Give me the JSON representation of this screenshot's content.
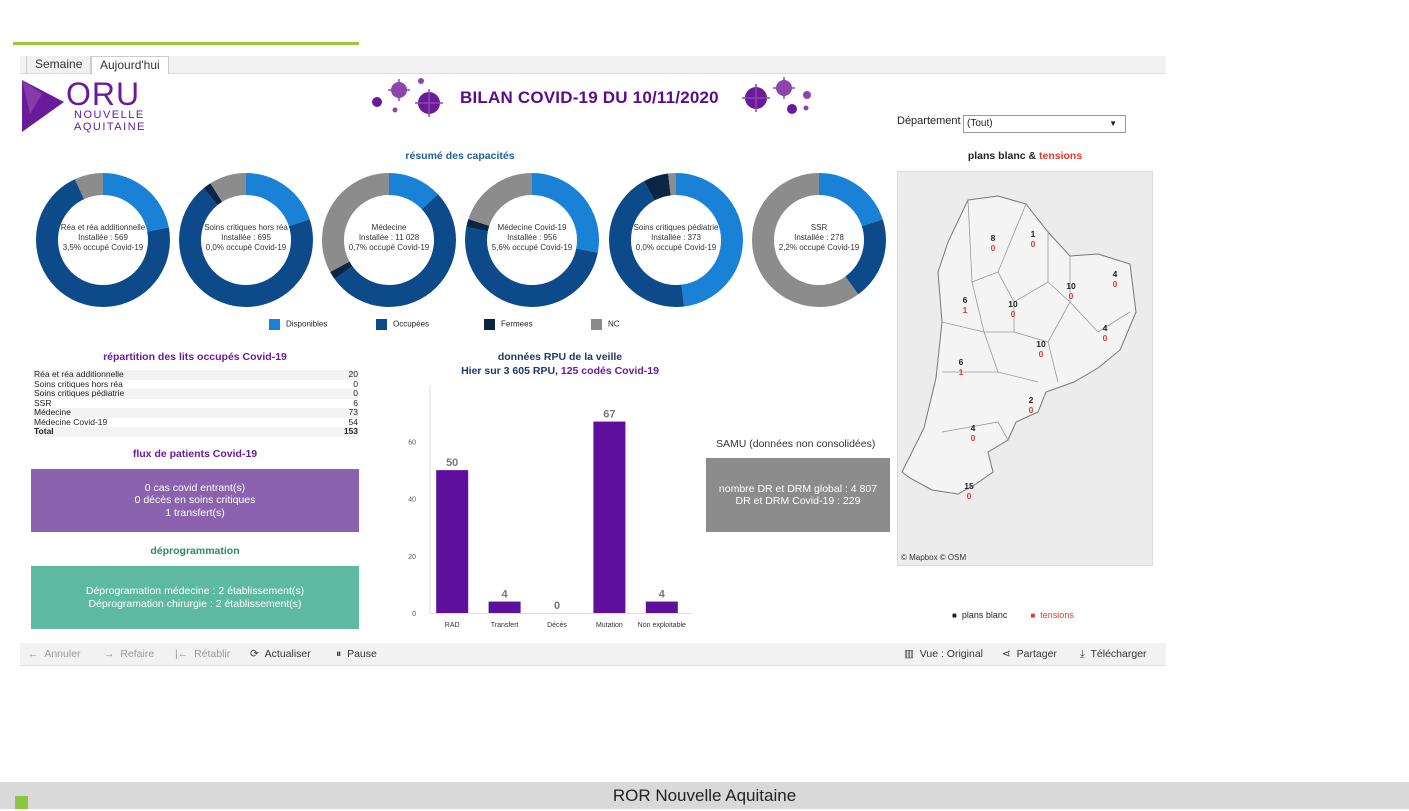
{
  "tabs": [
    {
      "label": "Semaine"
    },
    {
      "label": "Aujourd'hui",
      "active": true
    }
  ],
  "logo": {
    "main": "ORU",
    "line1": "NOUVELLE",
    "line2": "AQUITAINE"
  },
  "title": "BILAN COVID-19 DU 10/11/2020",
  "filter": {
    "label": "Département",
    "value": "(Tout)"
  },
  "capacity": {
    "title": "résumé des capacités",
    "colors": {
      "disponibles": "#1a82d6",
      "occupees": "#0d4a8a",
      "fermees": "#0b2545",
      "nc": "#8c8c8c"
    },
    "legend": [
      "Disponibles",
      "Occupées",
      "Fermees",
      "NC"
    ],
    "donuts": [
      {
        "name": "Réa et réa additionnelle",
        "installee": "Installée : 569",
        "occupe": "3,5% occupé  Covid-19",
        "disponibles": 22,
        "occupees": 71,
        "fermees": 0,
        "nc": 7
      },
      {
        "name": "Soins critiques hors réa",
        "installee": "Installée : 695",
        "occupe": "0,0% occupé  Covid-19",
        "disponibles": 20,
        "occupees": 69,
        "fermees": 2,
        "nc": 9
      },
      {
        "name": "Médecine",
        "installee": "Installée : 11 028",
        "occupe": "0,7% occupé  Covid-19",
        "disponibles": 13,
        "occupees": 52,
        "fermees": 2,
        "nc": 33
      },
      {
        "name": "Médecine Covid-19",
        "installee": "Installée : 956",
        "occupe": "5,6% occupé  Covid-19",
        "disponibles": 28,
        "occupees": 50,
        "fermees": 2,
        "nc": 20
      },
      {
        "name": "Soins critiques pédiatrie",
        "installee": "Installée : 373",
        "occupe": "0,0% occupé  Covid-19",
        "disponibles": 48,
        "occupees": 44,
        "fermees": 6,
        "nc": 2
      },
      {
        "name": "SSR",
        "installee": "Installée : 278",
        "occupe": "2,2% occupé  Covid-19",
        "disponibles": 20,
        "occupees": 20,
        "fermees": 0,
        "nc": 60
      }
    ]
  },
  "repartition": {
    "title": "répartition des lits occupés Covid-19",
    "rows": [
      {
        "label": "Réa et réa additionnelle",
        "value": "20"
      },
      {
        "label": "Soins critiques hors réa",
        "value": "0"
      },
      {
        "label": "Soins critiques pédiatrie",
        "value": "0"
      },
      {
        "label": "SSR",
        "value": "6"
      },
      {
        "label": "Médecine",
        "value": "73"
      },
      {
        "label": "Médecine Covid-19",
        "value": "54"
      },
      {
        "label": "Total",
        "value": "153"
      }
    ]
  },
  "flux": {
    "title": "flux de patients Covid-19",
    "lines": [
      "0 cas covid entrant(s)",
      "0 décès en soins critiques",
      "1 transfert(s)"
    ]
  },
  "deprog": {
    "title": "déprogrammation",
    "lines": [
      "Déprogramation médecine : 2 établissement(s)",
      "Déprogramation chirurgie : 2 établissement(s)"
    ]
  },
  "rpu": {
    "title": "données RPU de la veille",
    "subtitle_prefix": "Hier sur 3 605 RPU,",
    "subtitle_highlight": "125 codés Covid-19"
  },
  "chart_data": {
    "type": "bar",
    "categories": [
      "RAD",
      "Transfert",
      "Décès",
      "Mutation",
      "Non exploitable"
    ],
    "values": [
      50,
      4,
      0,
      67,
      4
    ],
    "ylim": [
      0,
      70
    ],
    "yticks": [
      0,
      20,
      40,
      60
    ],
    "color": "#5e0f9c"
  },
  "samu": {
    "title": "SAMU (données non consolidées)",
    "lines": [
      "nombre DR et DRM global : 4 807",
      "DR et DRM Covid-19 : 229"
    ]
  },
  "plans": {
    "title_prefix": "plans blanc &",
    "title_highlight": "tensions",
    "attribution": "© Mapbox  © OSM",
    "departments": [
      {
        "blanc": "8",
        "tension": "0"
      },
      {
        "blanc": "1",
        "tension": "0"
      },
      {
        "blanc": "10",
        "tension": "0"
      },
      {
        "blanc": "4",
        "tension": "0"
      },
      {
        "blanc": "6",
        "tension": "1"
      },
      {
        "blanc": "10",
        "tension": "0"
      },
      {
        "blanc": "4",
        "tension": "0"
      },
      {
        "blanc": "10",
        "tension": "0"
      },
      {
        "blanc": "6",
        "tension": "1"
      },
      {
        "blanc": "2",
        "tension": "0"
      },
      {
        "blanc": "4",
        "tension": "0"
      },
      {
        "blanc": "15",
        "tension": "0"
      }
    ],
    "legend": {
      "blanc": "plans blanc",
      "tensions": "tensions"
    }
  },
  "toolbar": {
    "annuler": "Annuler",
    "refaire": "Refaire",
    "retablir": "Rétablir",
    "actualiser": "Actualiser",
    "pause": "Pause",
    "vue": "Vue : Original",
    "partager": "Partager",
    "telecharger": "Télécharger"
  },
  "footer": "ROR Nouvelle Aquitaine"
}
